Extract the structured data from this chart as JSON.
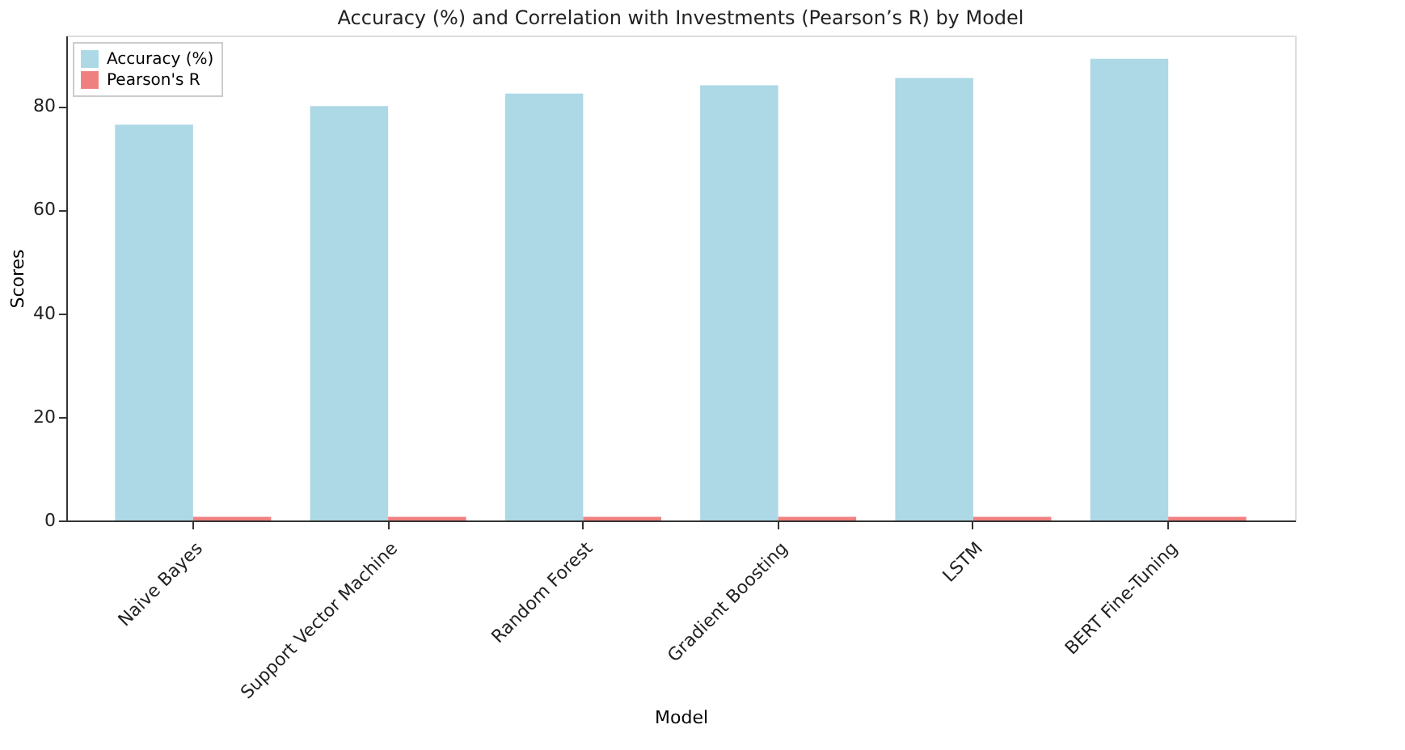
{
  "chart_data": {
    "type": "bar",
    "title": "Accuracy (%) and Correlation with Investments (Pearson’s R) by Model",
    "xlabel": "Model",
    "ylabel": "Scores",
    "categories": [
      "Naive Bayes",
      "Support Vector Machine",
      "Random Forest",
      "Gradient Boosting",
      "LSTM",
      "BERT Fine-Tuning"
    ],
    "series": [
      {
        "name": "Accuracy (%)",
        "color": "#add8e6",
        "values": [
          76.4,
          80.0,
          82.4,
          84.0,
          85.4,
          89.1
        ]
      },
      {
        "name": "Pearson's R",
        "color": "#f08080",
        "values": [
          0.7,
          0.7,
          0.7,
          0.7,
          0.7,
          0.7
        ]
      }
    ],
    "ylim": [
      0,
      93.6
    ],
    "yticks": [
      0,
      20,
      40,
      60,
      80
    ],
    "grid": false,
    "legend": "top left"
  }
}
